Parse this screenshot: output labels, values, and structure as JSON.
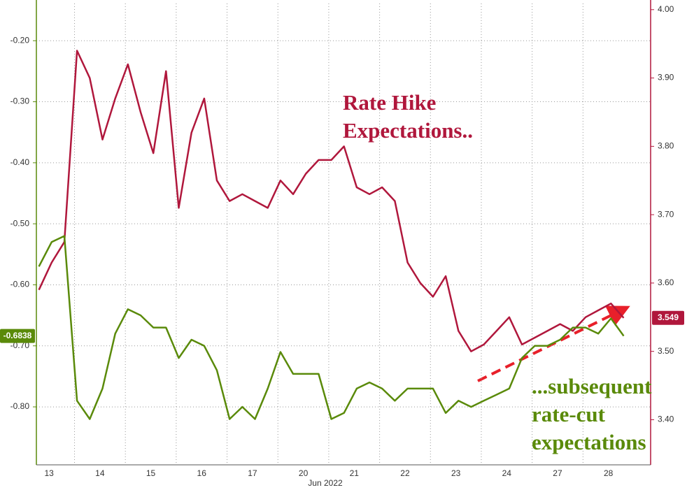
{
  "chart_data": {
    "type": "line",
    "categories": [
      "13",
      "14",
      "15",
      "16",
      "17",
      "20",
      "21",
      "22",
      "23",
      "24",
      "27",
      "28"
    ],
    "xlabel": "Jun 2022",
    "x": [
      -0.2,
      0.05,
      0.3,
      0.55,
      0.8,
      1.05,
      1.3,
      1.55,
      1.8,
      2.05,
      2.3,
      2.55,
      2.8,
      3.05,
      3.3,
      3.55,
      3.8,
      4.05,
      4.3,
      4.55,
      4.8,
      5.05,
      5.3,
      5.55,
      5.8,
      6.05,
      6.3,
      6.55,
      6.8,
      7.05,
      7.3,
      7.55,
      7.8,
      8.05,
      8.3,
      8.55,
      8.8,
      9.05,
      9.3,
      9.55,
      9.8,
      10.05,
      10.3,
      10.55,
      10.8,
      11.05,
      11.3
    ],
    "xlim": [
      -0.25,
      11.83
    ],
    "ylim": [
      -0.895,
      -0.139
    ],
    "yticks": [
      {
        "value": -0.2,
        "label": "-0.20"
      },
      {
        "value": -0.3,
        "label": "-0.30"
      },
      {
        "value": -0.4,
        "label": "-0.40"
      },
      {
        "value": -0.5,
        "label": "-0.50"
      },
      {
        "value": -0.6,
        "label": "-0.60"
      },
      {
        "value": -0.7,
        "label": "-0.70"
      },
      {
        "value": -0.8,
        "label": "-0.80"
      }
    ],
    "y2lim": [
      3.334,
      4.009
    ],
    "y2ticks": [
      {
        "value": 4.0,
        "label": "4.00"
      },
      {
        "value": 3.9,
        "label": "3.90"
      },
      {
        "value": 3.8,
        "label": "3.80"
      },
      {
        "value": 3.7,
        "label": "3.70"
      },
      {
        "value": 3.6,
        "label": "3.60"
      },
      {
        "value": 3.5,
        "label": "3.50"
      },
      {
        "value": 3.4,
        "label": "3.40"
      }
    ],
    "grid": true,
    "series": [
      {
        "color": "#b0173c",
        "axis": "y2",
        "values": [
          3.59,
          3.63,
          3.66,
          3.94,
          3.9,
          3.81,
          3.87,
          3.92,
          3.85,
          3.79,
          3.91,
          3.71,
          3.82,
          3.87,
          3.75,
          3.72,
          3.73,
          3.72,
          3.71,
          3.75,
          3.73,
          3.76,
          3.78,
          3.78,
          3.8,
          3.74,
          3.73,
          3.74,
          3.72,
          3.63,
          3.6,
          3.58,
          3.61,
          3.53,
          3.5,
          3.51,
          3.53,
          3.55,
          3.51,
          3.52,
          3.53,
          3.54,
          3.53,
          3.55,
          3.56,
          3.57,
          3.549
        ],
        "value_labels": [
          null,
          null,
          null,
          null,
          null,
          null,
          null,
          null,
          null,
          null,
          null,
          null,
          null,
          null,
          null,
          null,
          null,
          null,
          null,
          null,
          null,
          null,
          null,
          null,
          null,
          null,
          null,
          null,
          null,
          null,
          null,
          null,
          null,
          null,
          null,
          null,
          null,
          null,
          null,
          null,
          null,
          null,
          null,
          null,
          null,
          null,
          "3.549"
        ]
      },
      {
        "color": "#5a8a0a",
        "axis": "y",
        "values": [
          -0.57,
          -0.53,
          -0.52,
          -0.79,
          -0.82,
          -0.77,
          -0.68,
          -0.64,
          -0.65,
          -0.67,
          -0.67,
          -0.72,
          -0.69,
          -0.7,
          -0.74,
          -0.82,
          -0.8,
          -0.82,
          -0.77,
          -0.71,
          -0.746,
          -0.746,
          -0.746,
          -0.82,
          -0.81,
          -0.77,
          -0.76,
          -0.77,
          -0.79,
          -0.77,
          -0.77,
          -0.77,
          -0.81,
          -0.79,
          -0.8,
          -0.79,
          -0.78,
          -0.77,
          -0.72,
          -0.7,
          -0.7,
          -0.69,
          -0.67,
          -0.67,
          -0.68,
          -0.655,
          -0.6838
        ],
        "value_labels": [
          null,
          null,
          null,
          null,
          null,
          null,
          null,
          null,
          null,
          null,
          null,
          null,
          null,
          null,
          null,
          null,
          null,
          null,
          null,
          null,
          null,
          null,
          null,
          null,
          null,
          null,
          null,
          null,
          null,
          null,
          null,
          null,
          null,
          null,
          null,
          null,
          null,
          null,
          null,
          null,
          null,
          null,
          null,
          null,
          null,
          null,
          "-0.6838"
        ]
      }
    ],
    "annotations": [
      {
        "lines": [
          "Rate Hike",
          "Expectations.."
        ],
        "color": "#b0173c"
      },
      {
        "lines": [
          "...subsequent",
          "rate-cut",
          "expectations"
        ],
        "color": "#5a8a0a"
      }
    ]
  }
}
